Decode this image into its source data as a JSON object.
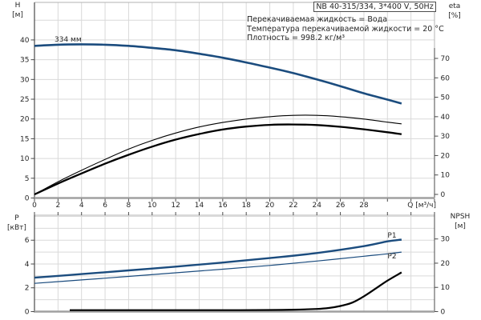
{
  "header": {
    "model_title": "NB 40-315/334, 3*400 V, 50Hz"
  },
  "conditions": [
    "Перекачиваемая жидкость = Вода",
    "Температура перекачиваемой жидкости = 20 °C",
    "Плотность = 998.2 кг/м³"
  ],
  "colors": {
    "curve_blue": "#1b4c7e",
    "curve_black": "#000000",
    "grid": "#d9d9d9",
    "frame": "#b3b3b3",
    "axis_dark": "#4a4a4a",
    "axis_thick_grey": "#a0a0a0",
    "text": "#262626"
  },
  "chart_data": [
    {
      "name": "head-efficiency-chart",
      "type": "line",
      "x_axis": {
        "label": "Q [м³/ч]",
        "min": 0,
        "max": 34,
        "grid_step": 2,
        "tick_labels": [
          "0",
          "2",
          "4",
          "6",
          "8",
          "10",
          "12",
          "14",
          "16",
          "18",
          "20",
          "22",
          "24",
          "26",
          "28"
        ]
      },
      "y_left": {
        "label": [
          "H",
          "[м]"
        ],
        "min": 0,
        "max": 49.5,
        "grid_step": 5,
        "label_step": 5,
        "tick_labels": [
          "0",
          "5",
          "10",
          "15",
          "20",
          "25",
          "30",
          "35",
          "40"
        ]
      },
      "y_right": {
        "label": [
          "eta",
          "[%]"
        ],
        "min": 0,
        "max": 70,
        "grid_step": 10,
        "tick_labels": [
          "0",
          "10",
          "20",
          "30",
          "40",
          "50",
          "60",
          "70"
        ]
      },
      "series": [
        {
          "name": "head-curve-334mm",
          "label": "334 мм",
          "axis": "left",
          "stroke": "blue",
          "width": 2.6,
          "points": [
            [
              0,
              38.5
            ],
            [
              2,
              38.8
            ],
            [
              4,
              38.9
            ],
            [
              6,
              38.8
            ],
            [
              8,
              38.5
            ],
            [
              10,
              38.0
            ],
            [
              12,
              37.4
            ],
            [
              14,
              36.5
            ],
            [
              16,
              35.5
            ],
            [
              18,
              34.3
            ],
            [
              20,
              33.0
            ],
            [
              22,
              31.6
            ],
            [
              24,
              30.0
            ],
            [
              26,
              28.3
            ],
            [
              28,
              26.5
            ],
            [
              30,
              24.9
            ],
            [
              31.2,
              23.9
            ]
          ]
        },
        {
          "name": "efficiency-curve-thin",
          "label": "",
          "axis": "right",
          "stroke": "black",
          "width": 1.1,
          "points": [
            [
              0,
              0
            ],
            [
              2,
              6.5
            ],
            [
              4,
              12.4
            ],
            [
              6,
              18.0
            ],
            [
              8,
              23.3
            ],
            [
              10,
              27.8
            ],
            [
              12,
              31.6
            ],
            [
              14,
              34.7
            ],
            [
              16,
              37.0
            ],
            [
              18,
              38.8
            ],
            [
              20,
              40.0
            ],
            [
              22,
              40.7
            ],
            [
              24,
              40.7
            ],
            [
              26,
              40.0
            ],
            [
              28,
              38.8
            ],
            [
              30,
              37.2
            ],
            [
              31.2,
              36.3
            ]
          ]
        },
        {
          "name": "efficiency-curve-thick",
          "label": "",
          "axis": "right",
          "stroke": "black",
          "width": 2.3,
          "points": [
            [
              0,
              0
            ],
            [
              2,
              5.6
            ],
            [
              4,
              10.8
            ],
            [
              6,
              15.8
            ],
            [
              8,
              20.4
            ],
            [
              10,
              24.6
            ],
            [
              12,
              28.2
            ],
            [
              14,
              31.1
            ],
            [
              16,
              33.4
            ],
            [
              18,
              34.9
            ],
            [
              20,
              35.8
            ],
            [
              22,
              36.0
            ],
            [
              24,
              35.7
            ],
            [
              26,
              34.8
            ],
            [
              28,
              33.5
            ],
            [
              30,
              32.0
            ],
            [
              31.2,
              31.0
            ]
          ]
        }
      ]
    },
    {
      "name": "power-npsh-chart",
      "type": "line",
      "x_axis": {
        "label": "",
        "min": 0,
        "max": 34,
        "grid_step": 2,
        "tick_labels": []
      },
      "y_left": {
        "label": [
          "P",
          "[кВт]"
        ],
        "min": 0,
        "max": 8.1,
        "grid_step": 1,
        "label_step": 2,
        "tick_labels": [
          "0",
          "2",
          "4",
          "6"
        ]
      },
      "y_right": {
        "label": [
          "NPSH",
          "[м]"
        ],
        "min": 0,
        "max": 39.8,
        "grid_step": 10,
        "tick_labels": [
          "0",
          "10",
          "20",
          "30"
        ]
      },
      "series": [
        {
          "name": "p1-input-power-curve",
          "label": "P1",
          "axis": "left",
          "stroke": "blue",
          "width": 2.4,
          "points": [
            [
              0,
              2.85
            ],
            [
              4,
              3.15
            ],
            [
              8,
              3.46
            ],
            [
              12,
              3.78
            ],
            [
              16,
              4.12
            ],
            [
              20,
              4.5
            ],
            [
              24,
              4.92
            ],
            [
              28,
              5.5
            ],
            [
              30,
              5.9
            ],
            [
              31.2,
              6.05
            ]
          ]
        },
        {
          "name": "p2-shaft-power-curve",
          "label": "P2",
          "axis": "left",
          "stroke": "blue",
          "width": 1.2,
          "points": [
            [
              0,
              2.37
            ],
            [
              4,
              2.66
            ],
            [
              8,
              2.96
            ],
            [
              12,
              3.26
            ],
            [
              16,
              3.56
            ],
            [
              20,
              3.88
            ],
            [
              24,
              4.25
            ],
            [
              28,
              4.65
            ],
            [
              30,
              4.85
            ],
            [
              31.2,
              5.0
            ]
          ]
        },
        {
          "name": "npsh-curve",
          "label": "",
          "axis": "right",
          "stroke": "black",
          "width": 2.2,
          "points": [
            [
              3,
              0.6
            ],
            [
              8,
              0.6
            ],
            [
              12,
              0.6
            ],
            [
              16,
              0.6
            ],
            [
              20,
              0.65
            ],
            [
              22,
              0.8
            ],
            [
              24,
              1.1
            ],
            [
              25,
              1.5
            ],
            [
              26,
              2.3
            ],
            [
              27,
              3.7
            ],
            [
              28,
              6.3
            ],
            [
              29,
              9.5
            ],
            [
              30,
              12.8
            ],
            [
              31.2,
              16.2
            ]
          ]
        }
      ]
    }
  ]
}
